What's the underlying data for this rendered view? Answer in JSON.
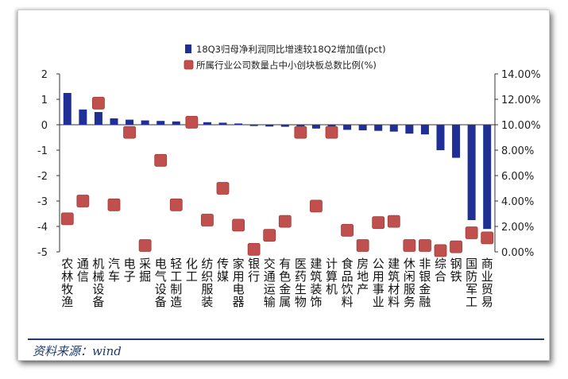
{
  "chart_data": {
    "type": "bar",
    "categories": [
      "农林牧渔",
      "通信",
      "机械设备",
      "汽车",
      "电子",
      "采掘",
      "电气设备",
      "轻工制造",
      "化工",
      "纺织服装",
      "传媒",
      "家用电器",
      "银行",
      "交通运输",
      "有色金属",
      "医药生物",
      "建筑装饰",
      "计算机",
      "食品饮料",
      "房地产",
      "公用事业",
      "建筑材料",
      "休闲服务",
      "非银金融",
      "综合",
      "钢铁",
      "国防军工",
      "商业贸易"
    ],
    "series": [
      {
        "name": "18Q3归母净利润同比增速较18Q2增加值(pct)",
        "type": "bar",
        "axis": "left",
        "color": "#1f2f96",
        "values": [
          1.25,
          0.6,
          0.5,
          0.25,
          0.2,
          0.17,
          0.15,
          0.13,
          0.12,
          0.1,
          0.08,
          0.05,
          -0.05,
          -0.07,
          -0.08,
          -0.1,
          -0.15,
          -0.18,
          -0.2,
          -0.22,
          -0.24,
          -0.27,
          -0.35,
          -0.38,
          -1.0,
          -1.3,
          -3.75,
          -4.1
        ]
      },
      {
        "name": "所属行业公司数量占中小创块板总数比例(%)",
        "type": "scatter",
        "axis": "right",
        "color": "#c0504d",
        "values": [
          2.6,
          4.0,
          11.7,
          3.7,
          9.4,
          0.5,
          7.2,
          3.7,
          10.2,
          2.5,
          5.0,
          2.1,
          0.2,
          1.3,
          2.4,
          9.4,
          3.6,
          9.4,
          1.7,
          0.5,
          2.3,
          2.4,
          0.5,
          0.5,
          0.1,
          0.4,
          1.5,
          1.1
        ]
      }
    ],
    "ylim_left": [
      -5,
      2
    ],
    "yticks_left": [
      "2",
      "1",
      "0",
      "-1",
      "-2",
      "-3",
      "-4",
      "-5"
    ],
    "ylim_right": [
      0,
      14
    ],
    "yticks_right": [
      "14.00%",
      "12.00%",
      "10.00%",
      "8.00%",
      "6.00%",
      "4.00%",
      "2.00%",
      "0.00%"
    ],
    "legend_position": "top",
    "grid": false
  },
  "source_text": "资料来源：wind"
}
